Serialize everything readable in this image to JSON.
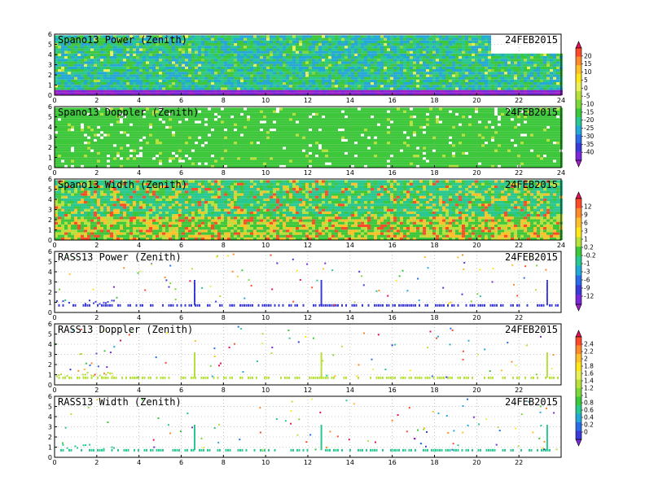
{
  "chart_data": [
    {
      "type": "heatmap",
      "title": "Spano13 Power (Zenith)",
      "date": "24FEB2015",
      "xticks": [
        "0",
        "2",
        "4",
        "6",
        "8",
        "10",
        "12",
        "14",
        "16",
        "18",
        "20",
        "22",
        "24"
      ],
      "yticks": [
        "0",
        "1",
        "2",
        "3",
        "4",
        "5",
        "6"
      ],
      "xlim": [
        0,
        24
      ],
      "ylim": [
        0,
        6
      ],
      "colorbar": "power",
      "grid": true
    },
    {
      "type": "heatmap",
      "title": "Spano13 Doppler (Zenith)",
      "date": "24FEB2015",
      "xticks": [
        "0",
        "2",
        "4",
        "6",
        "8",
        "10",
        "12",
        "14",
        "16",
        "18",
        "20",
        "22",
        "24"
      ],
      "yticks": [
        "0",
        "1",
        "2",
        "3",
        "4",
        "5",
        "6"
      ],
      "xlim": [
        0,
        24
      ],
      "ylim": [
        0,
        6
      ],
      "colorbar": "doppler",
      "grid": true
    },
    {
      "type": "heatmap",
      "title": "Spano13 Width (Zenith)",
      "date": "24FEB2015",
      "xticks": [
        "0",
        "2",
        "4",
        "6",
        "8",
        "10",
        "12",
        "14",
        "16",
        "18",
        "20",
        "22",
        "24"
      ],
      "yticks": [
        "0",
        "1",
        "2",
        "3",
        "4",
        "5",
        "6"
      ],
      "xlim": [
        0,
        24
      ],
      "ylim": [
        0,
        6
      ],
      "colorbar": "doppler",
      "grid": true
    },
    {
      "type": "heatmap",
      "title": "RASS13 Power (Zenith)",
      "date": "24FEB2015",
      "xticks": [
        "0",
        "2",
        "4",
        "6",
        "8",
        "10",
        "12",
        "14",
        "16",
        "18",
        "20",
        "22"
      ],
      "yticks": [
        "0",
        "1",
        "2",
        "3",
        "4",
        "5",
        "6"
      ],
      "xlim": [
        0,
        24
      ],
      "ylim": [
        0,
        6
      ],
      "colorbar": "rass",
      "grid": true
    },
    {
      "type": "heatmap",
      "title": "RASS13 Doppler (Zenith)",
      "date": "24FEB2015",
      "xticks": [
        "0",
        "2",
        "4",
        "6",
        "8",
        "10",
        "12",
        "14",
        "16",
        "18",
        "20",
        "22"
      ],
      "yticks": [
        "0",
        "1",
        "2",
        "3",
        "4",
        "5",
        "6"
      ],
      "xlim": [
        0,
        24
      ],
      "ylim": [
        0,
        6
      ],
      "colorbar": "rass",
      "grid": true
    },
    {
      "type": "heatmap",
      "title": "RASS13 Width (Zenith)",
      "date": "24FEB2015",
      "xticks": [
        "0",
        "2",
        "4",
        "6",
        "8",
        "10",
        "12",
        "14",
        "16",
        "18",
        "20",
        "22"
      ],
      "yticks": [
        "0",
        "1",
        "2",
        "3",
        "4",
        "5",
        "6"
      ],
      "xlim": [
        0,
        24
      ],
      "ylim": [
        0,
        6
      ],
      "colorbar": "rass",
      "grid": true
    }
  ],
  "colorbars": [
    {
      "id": "power",
      "labels": [
        "20",
        "15",
        "10",
        "5",
        "0",
        "-5",
        "-10",
        "-15",
        "-20",
        "-25",
        "-30",
        "-35",
        "-40"
      ],
      "colors": [
        "#e0105a",
        "#ff4a2a",
        "#ff8a2a",
        "#ffc02a",
        "#ffe81a",
        "#e8f05a",
        "#b8e03a",
        "#7cd83a",
        "#3cc83a",
        "#28c890",
        "#24a8d8",
        "#2a6ce8",
        "#3a3ad8",
        "#7a28d8",
        "#a020c8"
      ]
    },
    {
      "id": "doppler",
      "labels": [
        "12",
        "9",
        "6",
        "3",
        "1",
        "0.2",
        "-0.2",
        "-1",
        "-3",
        "-6",
        "-9",
        "-12"
      ],
      "colors": [
        "#e0105a",
        "#ff4a2a",
        "#ff8a2a",
        "#ffc02a",
        "#ffe81a",
        "#b8e03a",
        "#3cc83a",
        "#28c890",
        "#24a8d8",
        "#2a6ce8",
        "#3a3ad8",
        "#7a28d8",
        "#a020c8"
      ]
    },
    {
      "id": "rass",
      "labels": [
        "2.4",
        "2.2",
        "2",
        "1.8",
        "1.6",
        "1.4",
        "1.2",
        "1",
        "0.8",
        "0.6",
        "0.4",
        "0.2",
        "0"
      ],
      "colors": [
        "#e0105a",
        "#ff4a2a",
        "#ff8a2a",
        "#ffc02a",
        "#ffe81a",
        "#e8f05a",
        "#b8e03a",
        "#7cd83a",
        "#3cc83a",
        "#28c890",
        "#24a8d8",
        "#2a6ce8",
        "#3a3ad8",
        "#7a28d8"
      ]
    }
  ]
}
